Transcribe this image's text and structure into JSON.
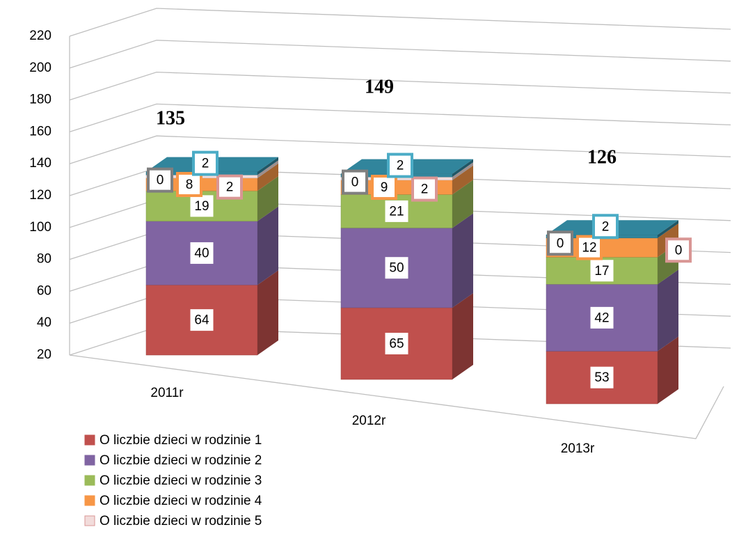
{
  "chart_data": {
    "type": "bar3d_stacked",
    "categories": [
      "2011r",
      "2012r",
      "2013r"
    ],
    "ylim": [
      20,
      220
    ],
    "yticks": [
      20,
      40,
      60,
      80,
      100,
      120,
      140,
      160,
      180,
      200,
      220
    ],
    "grid": true,
    "totals": [
      135,
      149,
      126
    ],
    "series": [
      {
        "name": "O liczbie dzieci w rodzinie 1",
        "color": "#c0504d",
        "label_border": "#c0504d",
        "values": [
          64,
          65,
          53
        ]
      },
      {
        "name": "O liczbie dzieci w rodzinie 2",
        "color": "#8064a2",
        "label_border": "#8064a2",
        "values": [
          40,
          50,
          42
        ]
      },
      {
        "name": "O liczbie dzieci w rodzinie 3",
        "color": "#9bbb59",
        "label_border": "#9bbb59",
        "values": [
          19,
          21,
          17
        ]
      },
      {
        "name": "O liczbie dzieci w rodzinie 4",
        "color": "#f79646",
        "label_border": "#f79646",
        "values": [
          8,
          9,
          12
        ]
      },
      {
        "name": "O liczbie dzieci w rodzinie 5",
        "color": "#f2dcdb",
        "label_border": "#d99694",
        "values": [
          2,
          2,
          0
        ]
      },
      {
        "color": "#ffffff",
        "label_border": "#7f7f7f",
        "values": [
          0,
          0,
          0
        ]
      },
      {
        "color": "#31859c",
        "label_border": "#4bacc6",
        "values": [
          2,
          2,
          2
        ]
      }
    ]
  }
}
